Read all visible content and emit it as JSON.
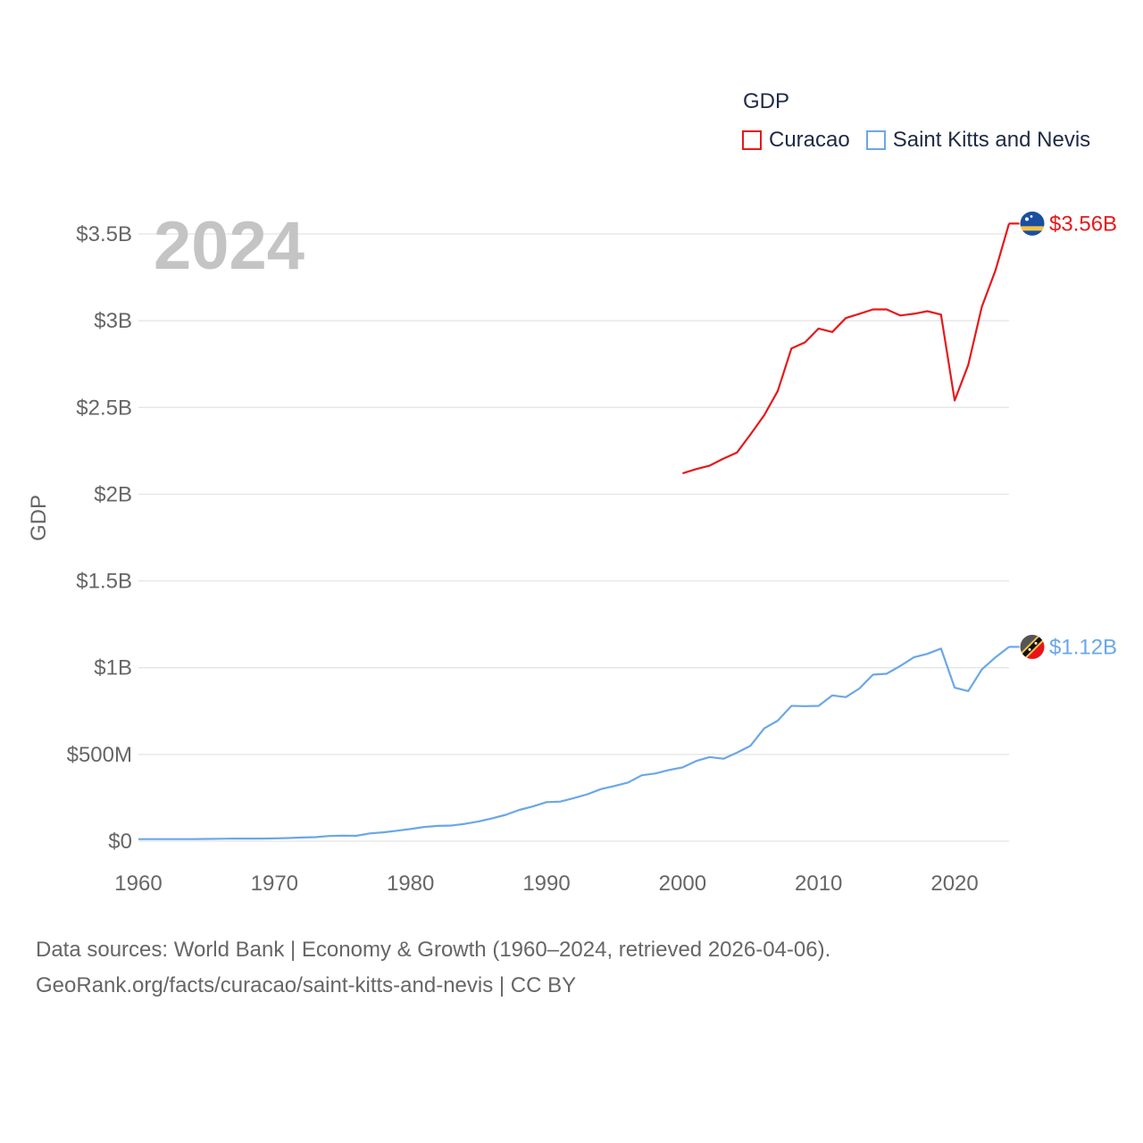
{
  "legend": {
    "title": "GDP",
    "items": [
      {
        "label": "Curacao",
        "color": "#e5191b"
      },
      {
        "label": "Saint Kitts and Nevis",
        "color": "#6aa7e8"
      }
    ]
  },
  "year_label": "2024",
  "footer": {
    "line1": "Data sources: World Bank | Economy & Growth (1960–2024, retrieved 2026-04-06).",
    "line2": "GeoRank.org/facts/curacao/saint-kitts-and-nevis | CC BY"
  },
  "chart_data": {
    "type": "line",
    "title": "",
    "xlabel": "",
    "ylabel": "GDP",
    "xlim": [
      1960,
      2024
    ],
    "ylim": [
      0,
      3500000000
    ],
    "x_ticks": [
      {
        "value": 1960,
        "label": "1960"
      },
      {
        "value": 1970,
        "label": "1970"
      },
      {
        "value": 1980,
        "label": "1980"
      },
      {
        "value": 1990,
        "label": "1990"
      },
      {
        "value": 2000,
        "label": "2000"
      },
      {
        "value": 2010,
        "label": "2010"
      },
      {
        "value": 2020,
        "label": "2020"
      }
    ],
    "y_ticks": [
      {
        "value": 0,
        "label": "$0"
      },
      {
        "value": 500000000,
        "label": "$500M"
      },
      {
        "value": 1000000000,
        "label": "$1B"
      },
      {
        "value": 1500000000,
        "label": "$1.5B"
      },
      {
        "value": 2000000000,
        "label": "$2B"
      },
      {
        "value": 2500000000,
        "label": "$2.5B"
      },
      {
        "value": 3000000000,
        "label": "$3B"
      },
      {
        "value": 3500000000,
        "label": "$3.5B"
      }
    ],
    "grid": true,
    "legend_position": "top-right",
    "series": [
      {
        "name": "Curacao",
        "color": "#e5191b",
        "end_label": "$3.56B",
        "flag_icon": "curacao-flag-icon",
        "x": [
          2000,
          2001,
          2002,
          2003,
          2004,
          2005,
          2006,
          2007,
          2008,
          2009,
          2010,
          2011,
          2012,
          2013,
          2014,
          2015,
          2016,
          2017,
          2018,
          2019,
          2020,
          2021,
          2022,
          2023,
          2024
        ],
        "values": [
          2120000000,
          2145000000,
          2165000000,
          2205000000,
          2240000000,
          2345000000,
          2455000000,
          2595000000,
          2840000000,
          2875000000,
          2955000000,
          2935000000,
          3015000000,
          3040000000,
          3065000000,
          3065000000,
          3030000000,
          3040000000,
          3055000000,
          3035000000,
          2540000000,
          2745000000,
          3080000000,
          3290000000,
          3560000000
        ]
      },
      {
        "name": "Saint Kitts and Nevis",
        "color": "#6aa7e8",
        "end_label": "$1.12B",
        "flag_icon": "saint-kitts-flag-icon",
        "x": [
          1960,
          1961,
          1962,
          1963,
          1964,
          1965,
          1966,
          1967,
          1968,
          1969,
          1970,
          1971,
          1972,
          1973,
          1974,
          1975,
          1976,
          1977,
          1978,
          1979,
          1980,
          1981,
          1982,
          1983,
          1984,
          1985,
          1986,
          1987,
          1988,
          1989,
          1990,
          1991,
          1992,
          1993,
          1994,
          1995,
          1996,
          1997,
          1998,
          1999,
          2000,
          2001,
          2002,
          2003,
          2004,
          2005,
          2006,
          2007,
          2008,
          2009,
          2010,
          2011,
          2012,
          2013,
          2014,
          2015,
          2016,
          2017,
          2018,
          2019,
          2020,
          2021,
          2022,
          2023,
          2024
        ],
        "values": [
          12000000,
          12000000,
          12000000,
          12000000,
          12000000,
          13000000,
          14000000,
          15000000,
          15000000,
          15000000,
          16000000,
          18000000,
          21000000,
          23000000,
          30000000,
          32000000,
          31000000,
          45000000,
          51000000,
          60000000,
          70000000,
          82000000,
          88000000,
          90000000,
          100000000,
          114000000,
          132000000,
          152000000,
          180000000,
          200000000,
          225000000,
          228000000,
          248000000,
          270000000,
          300000000,
          318000000,
          338000000,
          380000000,
          390000000,
          410000000,
          425000000,
          462000000,
          485000000,
          475000000,
          510000000,
          550000000,
          650000000,
          695000000,
          780000000,
          778000000,
          780000000,
          840000000,
          830000000,
          880000000,
          960000000,
          965000000,
          1010000000,
          1060000000,
          1080000000,
          1110000000,
          885000000,
          865000000,
          990000000,
          1060000000,
          1120000000
        ]
      }
    ]
  }
}
